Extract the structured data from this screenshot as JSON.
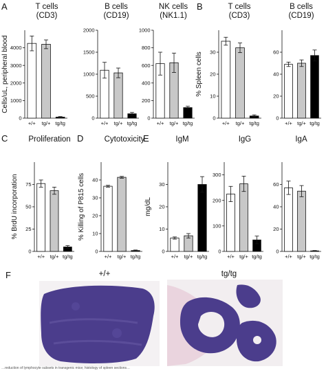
{
  "chart_data": [
    {
      "id": "A1",
      "panel": "A",
      "type": "bar",
      "title": "T cells",
      "subtitle": "(CD3)",
      "ylabel": "Cells/uL, peripheral blood",
      "categories": [
        "+/+",
        "tg/+",
        "tg/tg"
      ],
      "values": [
        4250,
        4200,
        60
      ],
      "errors": [
        420,
        250,
        30
      ],
      "ylim": [
        0,
        5000
      ],
      "yticks": [
        0,
        1000,
        2000,
        3000,
        4000
      ],
      "colors": [
        "#ffffff",
        "#c8c8c8",
        "#000000"
      ]
    },
    {
      "id": "A2",
      "type": "bar",
      "title": "B cells",
      "subtitle": "(CD19)",
      "categories": [
        "+/+",
        "tg/+",
        "tg/tg"
      ],
      "values": [
        1090,
        1030,
        100
      ],
      "errors": [
        180,
        110,
        30
      ],
      "ylim": [
        0,
        2000
      ],
      "yticks": [
        0,
        500,
        1000,
        1500,
        2000
      ],
      "colors": [
        "#ffffff",
        "#c8c8c8",
        "#000000"
      ]
    },
    {
      "id": "A3",
      "type": "bar",
      "title": "NK cells",
      "subtitle": "(NK1.1)",
      "categories": [
        "+/+",
        "tg/+",
        "tg/tg"
      ],
      "values": [
        620,
        630,
        120
      ],
      "errors": [
        130,
        110,
        15
      ],
      "ylim": [
        0,
        1000
      ],
      "yticks": [
        0,
        200,
        400,
        600,
        800,
        1000
      ],
      "colors": [
        "#ffffff",
        "#c8c8c8",
        "#000000"
      ]
    },
    {
      "id": "B1",
      "panel": "B",
      "type": "bar",
      "title": "T cells",
      "subtitle": "(CD3)",
      "ylabel": "% Spleen cells",
      "categories": [
        "+/+",
        "tg/+",
        "tg/tg"
      ],
      "values": [
        35,
        32,
        1
      ],
      "errors": [
        1.8,
        2.2,
        0.5
      ],
      "ylim": [
        0,
        40
      ],
      "yticks": [
        0,
        10,
        20,
        30
      ],
      "colors": [
        "#ffffff",
        "#c8c8c8",
        "#000000"
      ]
    },
    {
      "id": "B2",
      "type": "bar",
      "title": "B cells",
      "subtitle": "(CD19)",
      "categories": [
        "+/+",
        "tg/+",
        "tg/tg"
      ],
      "values": [
        49,
        50,
        57
      ],
      "errors": [
        2,
        3,
        5
      ],
      "ylim": [
        0,
        80
      ],
      "yticks": [
        0,
        20,
        40,
        60
      ],
      "colors": [
        "#ffffff",
        "#c8c8c8",
        "#000000"
      ]
    },
    {
      "id": "C1",
      "panel": "C",
      "type": "bar",
      "title": "Proliferation",
      "ylabel": "% BrdU incorporation",
      "categories": [
        "+/+",
        "tg/+",
        "tg/tg"
      ],
      "values": [
        76,
        68,
        5
      ],
      "errors": [
        4,
        4,
        1.5
      ],
      "ylim": [
        0,
        100
      ],
      "yticks": [
        0,
        25,
        50,
        75
      ],
      "colors": [
        "#ffffff",
        "#c8c8c8",
        "#000000"
      ]
    },
    {
      "id": "D1",
      "panel": "D",
      "type": "bar",
      "title": "Cytotoxicity",
      "ylabel": "% Killing of P815 cells",
      "categories": [
        "+/+",
        "tg/+",
        "tg/tg"
      ],
      "values": [
        36.5,
        41.5,
        0.5
      ],
      "errors": [
        0.5,
        0.5,
        0.3
      ],
      "ylim": [
        0,
        50
      ],
      "yticks": [
        0,
        10,
        20,
        30,
        40
      ],
      "colors": [
        "#ffffff",
        "#c8c8c8",
        "#000000"
      ]
    },
    {
      "id": "E1",
      "panel": "E",
      "type": "bar",
      "title": "IgM",
      "ylabel": "mg/dL",
      "categories": [
        "+/+",
        "tg/+",
        "tg/tg"
      ],
      "values": [
        6,
        7,
        30
      ],
      "errors": [
        0.5,
        1,
        3.5
      ],
      "ylim": [
        0,
        40
      ],
      "yticks": [
        0,
        10,
        20,
        30
      ],
      "colors": [
        "#ffffff",
        "#c8c8c8",
        "#000000"
      ]
    },
    {
      "id": "E2",
      "type": "bar",
      "title": "IgG",
      "categories": [
        "+/+",
        "tg/+",
        "tg/tg"
      ],
      "values": [
        225,
        265,
        45
      ],
      "errors": [
        30,
        30,
        15
      ],
      "ylim": [
        0,
        350
      ],
      "yticks": [
        0,
        100,
        200,
        300
      ],
      "colors": [
        "#ffffff",
        "#c8c8c8",
        "#000000"
      ]
    },
    {
      "id": "E3",
      "type": "bar",
      "title": "IgA",
      "categories": [
        "+/+",
        "tg/+",
        "tg/tg"
      ],
      "values": [
        57,
        54,
        0.5
      ],
      "errors": [
        6,
        5,
        0.3
      ],
      "ylim": [
        0,
        80
      ],
      "yticks": [
        0,
        20,
        40,
        60
      ],
      "colors": [
        "#ffffff",
        "#c8c8c8",
        "#000000"
      ]
    }
  ],
  "histology": {
    "panel": "F",
    "left_label": "+/+",
    "right_label": "tg/tg",
    "tissue_color": "#4b3d8c",
    "background_color": "#f2eef0",
    "stroma_color": "#e7c9d5"
  },
  "caption": "…reduction of lymphocyte subsets in transgenic mice; histology of spleen sections…"
}
